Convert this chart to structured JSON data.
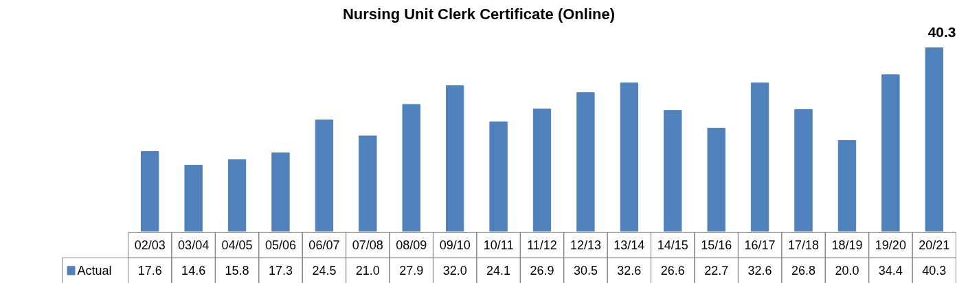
{
  "chart_data": {
    "type": "bar",
    "title": "Nursing Unit Clerk Certificate (Online)",
    "categories": [
      "02/03",
      "03/04",
      "04/05",
      "05/06",
      "06/07",
      "07/08",
      "08/09",
      "09/10",
      "10/11",
      "11/12",
      "12/13",
      "13/14",
      "14/15",
      "15/16",
      "16/17",
      "17/18",
      "18/19",
      "19/20",
      "20/21"
    ],
    "series": [
      {
        "name": "Actual",
        "color": "#4f81bd",
        "values": [
          17.6,
          14.6,
          15.8,
          17.3,
          24.5,
          21.0,
          27.9,
          32.0,
          24.1,
          26.9,
          30.5,
          32.6,
          26.6,
          22.7,
          32.6,
          26.8,
          20.0,
          34.4,
          40.3
        ],
        "value_labels": [
          "17.6",
          "14.6",
          "15.8",
          "17.3",
          "24.5",
          "21.0",
          "27.9",
          "32.0",
          "24.1",
          "26.9",
          "30.5",
          "32.6",
          "26.6",
          "22.7",
          "32.6",
          "26.8",
          "20.0",
          "34.4",
          "40.3"
        ]
      }
    ],
    "tick_labels": false,
    "grid": false,
    "annotations": [
      "40.3"
    ]
  }
}
